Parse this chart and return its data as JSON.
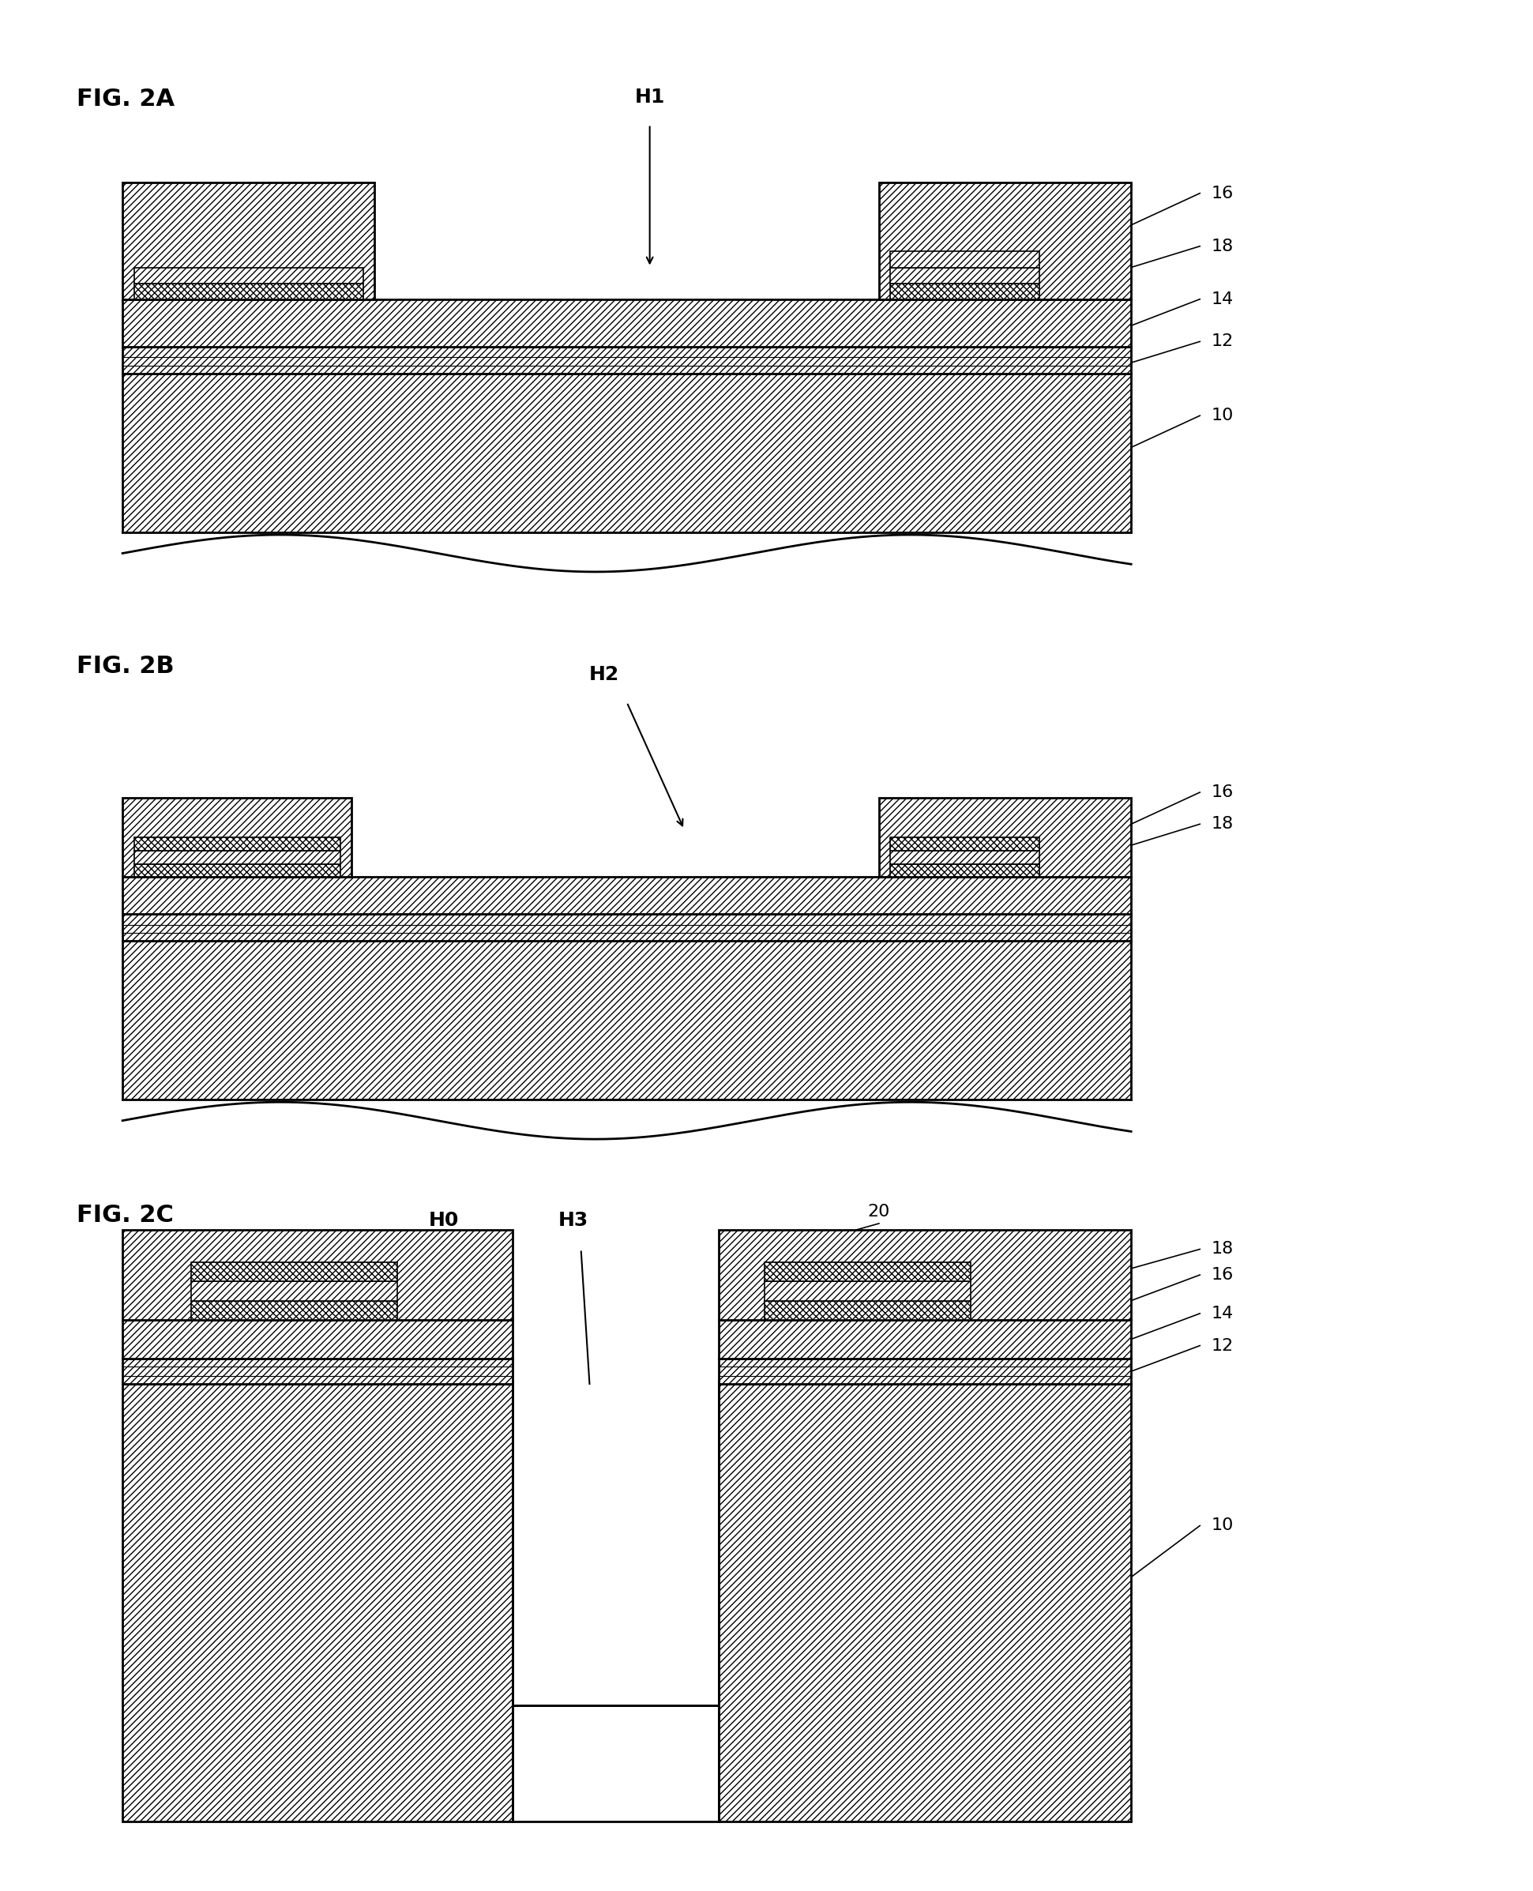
{
  "bg": "#ffffff",
  "lw_thick": 2.0,
  "lw_thin": 1.2,
  "hatch_diag": "////",
  "hatch_cross": "xxxx",
  "hatch_dot": "....",
  "fig2a_label": "FIG. 2A",
  "fig2b_label": "FIG. 2B",
  "fig2c_label": "FIG. 2C"
}
